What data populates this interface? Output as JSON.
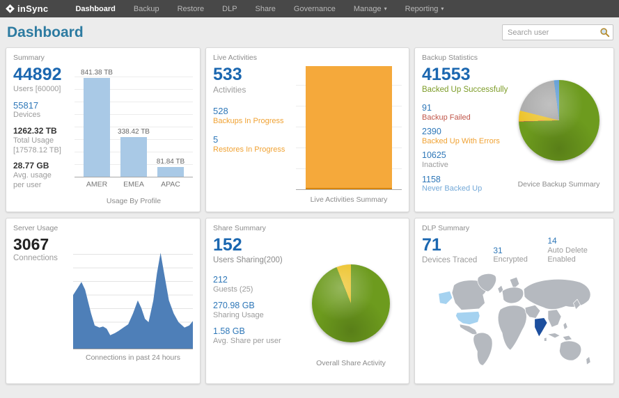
{
  "colors": {
    "nav_bg": "#484848",
    "title_teal": "#2d7ba1",
    "accent_blue": "#1b67b0",
    "link_blue": "#2e77b8",
    "orange": "#f0a233",
    "green_text": "#7d9c28",
    "red": "#c0564a",
    "light_blue_text": "#74a9d8"
  },
  "nav": {
    "brand": "inSync",
    "items": [
      {
        "label": "Dashboard",
        "active": true
      },
      {
        "label": "Backup"
      },
      {
        "label": "Restore"
      },
      {
        "label": "DLP"
      },
      {
        "label": "Share"
      },
      {
        "label": "Governance"
      },
      {
        "label": "Manage",
        "dropdown": true
      },
      {
        "label": "Reporting",
        "dropdown": true
      }
    ]
  },
  "header": {
    "title": "Dashboard",
    "search_placeholder": "Search user"
  },
  "panels": {
    "summary": {
      "title": "Summary",
      "users": {
        "value": "44892",
        "label": "Users [60000]"
      },
      "devices": {
        "value": "55817",
        "label": "Devices"
      },
      "total_usage": {
        "value": "1262.32 TB",
        "label": "Total Usage",
        "sub": "[17578.12 TB]"
      },
      "avg_usage": {
        "value": "28.77 GB",
        "label": "Avg. usage per user"
      }
    },
    "live_activities": {
      "title": "Live Activities",
      "activities": {
        "value": "533",
        "label": "Activities"
      },
      "backups": {
        "value": "528",
        "label": "Backups In Progress"
      },
      "restores": {
        "value": "5",
        "label": "Restores In Progress"
      }
    },
    "backup_statistics": {
      "title": "Backup Statistics",
      "success": {
        "value": "41553",
        "label": "Backed Up Successfully"
      },
      "failed": {
        "value": "91",
        "label": "Backup Failed"
      },
      "errors": {
        "value": "2390",
        "label": "Backed Up With Errors"
      },
      "inactive": {
        "value": "10625",
        "label": "Inactive"
      },
      "never": {
        "value": "1158",
        "label": "Never Backed Up"
      }
    },
    "server_usage": {
      "title": "Server Usage",
      "connections": {
        "value": "3067",
        "label": "Connections"
      }
    },
    "share_summary": {
      "title": "Share Summary",
      "users_sharing": {
        "value": "152",
        "label": "Users Sharing(200)"
      },
      "guests": {
        "value": "212",
        "label": "Guests (25)"
      },
      "sharing_usage": {
        "value": "270.98 GB",
        "label": "Sharing Usage"
      },
      "avg_share": {
        "value": "1.58 GB",
        "label": "Avg. Share per user"
      }
    },
    "dlp_summary": {
      "title": "DLP Summary",
      "devices_traced": {
        "value": "71",
        "label": "Devices Traced"
      },
      "encrypted": {
        "value": "31",
        "label": "Encrypted"
      },
      "auto_delete": {
        "value": "14",
        "label": "Auto Delete Enabled"
      }
    }
  },
  "chart_data": [
    {
      "id": "usage_by_profile",
      "type": "bar",
      "title": "Usage By Profile",
      "categories": [
        "AMER",
        "EMEA",
        "APAC"
      ],
      "values": [
        841.38,
        338.42,
        81.84
      ],
      "unit": "TB",
      "value_labels": [
        "841.38 TB",
        "338.42 TB",
        "81.84 TB"
      ],
      "ylim": [
        0,
        880
      ],
      "grid": true,
      "bar_color": "#a9c9e6"
    },
    {
      "id": "live_activities_summary",
      "type": "bar",
      "stacked": true,
      "title": "Live Activities Summary",
      "categories": [
        "Live Activities"
      ],
      "series": [
        {
          "name": "Restores In Progress",
          "value": 5,
          "color": "#d8860f"
        },
        {
          "name": "Backups In Progress",
          "value": 528,
          "color": "#f5a93b"
        }
      ],
      "ylim": [
        0,
        533
      ],
      "grid": true
    },
    {
      "id": "device_backup_summary",
      "type": "pie",
      "title": "Device Backup Summary",
      "slices": [
        {
          "label": "Backed Up Successfully",
          "value": 41553,
          "color": "#6d9b1e"
        },
        {
          "label": "Backup Failed",
          "value": 91,
          "color": "#c0564a"
        },
        {
          "label": "Backed Up With Errors",
          "value": 2390,
          "color": "#edc32a"
        },
        {
          "label": "Inactive",
          "value": 10625,
          "color": "#a9a9a9"
        },
        {
          "label": "Never Backed Up",
          "value": 1158,
          "color": "#5b9bd5"
        }
      ]
    },
    {
      "id": "connections_24h",
      "type": "area",
      "title": "Connections in past 24 hours",
      "xlabel": "past 24 hours",
      "ylabel": "connections",
      "points": [
        [
          0,
          50
        ],
        [
          7,
          62
        ],
        [
          10,
          55
        ],
        [
          15,
          33
        ],
        [
          18,
          22
        ],
        [
          22,
          20
        ],
        [
          25,
          21
        ],
        [
          28,
          19
        ],
        [
          31,
          13
        ],
        [
          35,
          15
        ],
        [
          38,
          17
        ],
        [
          42,
          20
        ],
        [
          46,
          23
        ],
        [
          50,
          33
        ],
        [
          54,
          45
        ],
        [
          57,
          38
        ],
        [
          60,
          28
        ],
        [
          63,
          25
        ],
        [
          67,
          45
        ],
        [
          70,
          70
        ],
        [
          73,
          89
        ],
        [
          76,
          70
        ],
        [
          80,
          45
        ],
        [
          84,
          33
        ],
        [
          88,
          25
        ],
        [
          93,
          20
        ],
        [
          97,
          22
        ],
        [
          100,
          26
        ]
      ],
      "fill": "#4e7fb8",
      "grid": true
    },
    {
      "id": "overall_share_activity",
      "type": "pie",
      "title": "Overall Share Activity",
      "slices": [
        {
          "label": "",
          "value": 94,
          "color": "#6d9b1e"
        },
        {
          "label": "",
          "value": 6,
          "color": "#edc32a"
        }
      ]
    },
    {
      "id": "dlp_map",
      "type": "map",
      "base_color": "#b5b9bf",
      "highlights": [
        {
          "region": "alaska",
          "color": "#a5d2f0"
        },
        {
          "region": "united-states",
          "color": "#a5d2f0"
        },
        {
          "region": "india",
          "color": "#1d4f9e"
        }
      ]
    }
  ]
}
